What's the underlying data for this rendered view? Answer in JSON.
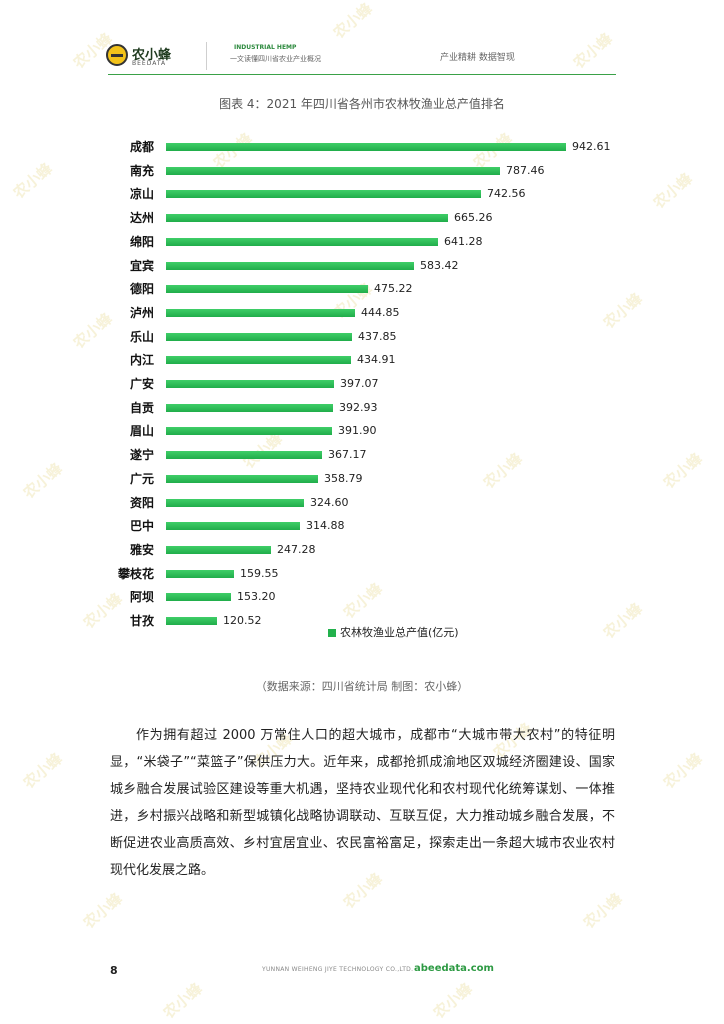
{
  "header": {
    "logo_name": "农小蜂",
    "logo_sub": "BEEDATA",
    "title_en": "INDUSTRIAL HEMP",
    "title_cn": "一文读懂四川省农业产业概况",
    "right_text": "产业精耕  数据智现"
  },
  "watermark": {
    "text": "农小蜂"
  },
  "figure": {
    "title": "图表 4：2021 年四川省各州市农林牧渔业总产值排名",
    "source": "（数据来源：四川省统计局    制图：农小蜂）"
  },
  "chart_data": {
    "type": "bar",
    "orientation": "horizontal",
    "title": "图表 4：2021 年四川省各州市农林牧渔业总产值排名",
    "categories": [
      "成都",
      "南充",
      "凉山",
      "达州",
      "绵阳",
      "宜宾",
      "德阳",
      "泸州",
      "乐山",
      "内江",
      "广安",
      "自贡",
      "眉山",
      "遂宁",
      "广元",
      "资阳",
      "巴中",
      "雅安",
      "攀枝花",
      "阿坝",
      "甘孜"
    ],
    "value_labels": [
      "942.61",
      "787.46",
      "742.56",
      "665.26",
      "641.28",
      "583.42",
      "475.22",
      "444.85",
      "437.85",
      "434.91",
      "397.07",
      "392.93",
      "391.90",
      "367.17",
      "358.79",
      "324.60",
      "314.88",
      "247.28",
      "159.55",
      "153.20",
      "120.52"
    ],
    "series": [
      {
        "name": "农林牧渔业总产值(亿元)",
        "values": [
          942.61,
          787.46,
          742.56,
          665.26,
          641.28,
          583.42,
          475.22,
          444.85,
          437.85,
          434.91,
          397.07,
          392.93,
          391.9,
          367.17,
          358.79,
          324.6,
          314.88,
          247.28,
          159.55,
          153.2,
          120.52
        ]
      }
    ],
    "xlim": [
      0,
      942.61
    ],
    "legend_position": "bottom-right",
    "grid": false,
    "bar_color": "#22b14c"
  },
  "body": {
    "paragraph": "作为拥有超过 2000 万常住人口的超大城市，成都市“大城市带大农村”的特征明显，“米袋子”“菜篮子”保供压力大。近年来，成都抢抓成渝地区双城经济圈建设、国家城乡融合发展试验区建设等重大机遇，坚持农业现代化和农村现代化统筹谋划、一体推进，乡村振兴战略和新型城镇化战略协调联动、互联互促，大力推动城乡融合发展，不断促进农业高质高效、乡村宜居宜业、农民富裕富足，探索走出一条超大城市农业农村现代化发展之路。"
  },
  "footer": {
    "page_number": "8",
    "company": "YUNNAN WEIHENG JIYE TECHNOLOGY CO.,LTD.",
    "url": "abeedata.com"
  }
}
